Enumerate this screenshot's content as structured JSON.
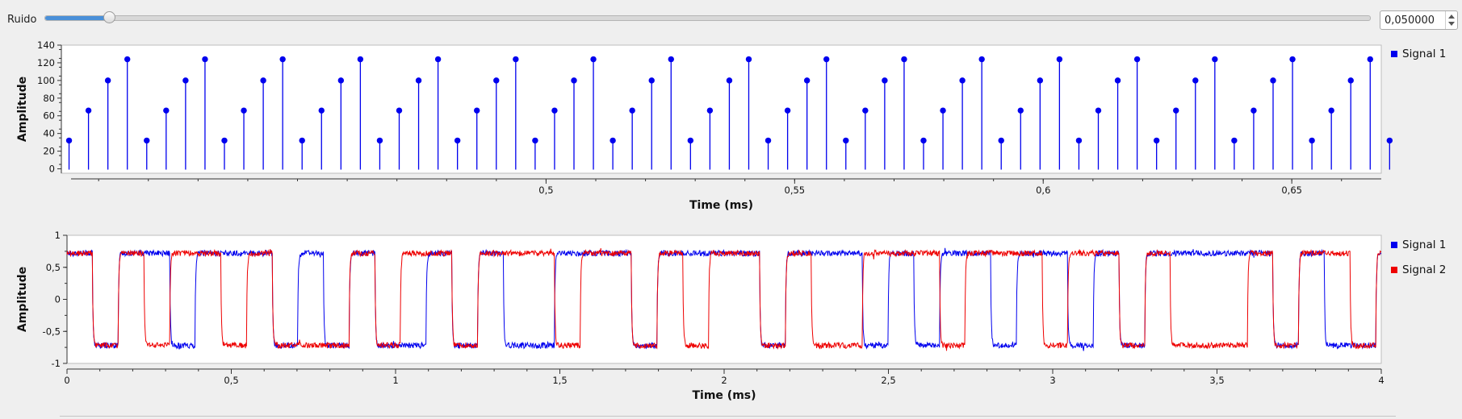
{
  "toolbar": {
    "noise_label": "Ruido",
    "noise_value": "0,050000",
    "slider_fraction": 0.047
  },
  "chart_data": [
    {
      "type": "stem",
      "xlabel": "Time (ms)",
      "ylabel": "Amplitude",
      "xlim": [
        0.4025,
        0.668
      ],
      "ylim": [
        -5,
        140
      ],
      "x_ticks": [
        0.5,
        0.55,
        0.6,
        0.65
      ],
      "x_tick_labels": [
        "0,5",
        "0,55",
        "0,6",
        "0,65"
      ],
      "y_ticks": [
        0,
        20,
        40,
        60,
        80,
        100,
        120,
        140
      ],
      "y_tick_labels": [
        "0",
        "20",
        "40",
        "60",
        "80",
        "100",
        "120",
        "140"
      ],
      "legend_position": "right",
      "series": [
        {
          "name": "Signal 1",
          "color": "#0000ee",
          "x_start": 0.40405,
          "x_step": 0.0039063,
          "pattern": [
            32,
            66,
            100,
            124
          ],
          "count": 69
        }
      ]
    },
    {
      "type": "line",
      "xlabel": "Time (ms)",
      "ylabel": "Amplitude",
      "xlim": [
        0,
        4
      ],
      "ylim": [
        -1,
        1
      ],
      "x_ticks": [
        0,
        0.5,
        1,
        1.5,
        2,
        2.5,
        3,
        3.5,
        4
      ],
      "x_tick_labels": [
        "0",
        "0,5",
        "1",
        "1,5",
        "2",
        "2,5",
        "3",
        "3,5",
        "4"
      ],
      "y_ticks": [
        -1,
        -0.5,
        0,
        0.5,
        1
      ],
      "y_tick_labels": [
        "-1",
        "-0,5",
        "0",
        "0,5",
        "1"
      ],
      "legend_position": "right",
      "high_level": 0.72,
      "low_level": -0.72,
      "bit_period": 0.0781,
      "series": [
        {
          "name": "Signal 1",
          "color": "#0000ee",
          "bits": "1011011101010010100111011110111010110110101111101001011011010100100111101101011010"
        },
        {
          "name": "Signal 2",
          "color": "#ee0000",
          "bits": "1010110100010110111011010110100111011101101000101101011010101010010110101011010110"
        }
      ]
    }
  ]
}
